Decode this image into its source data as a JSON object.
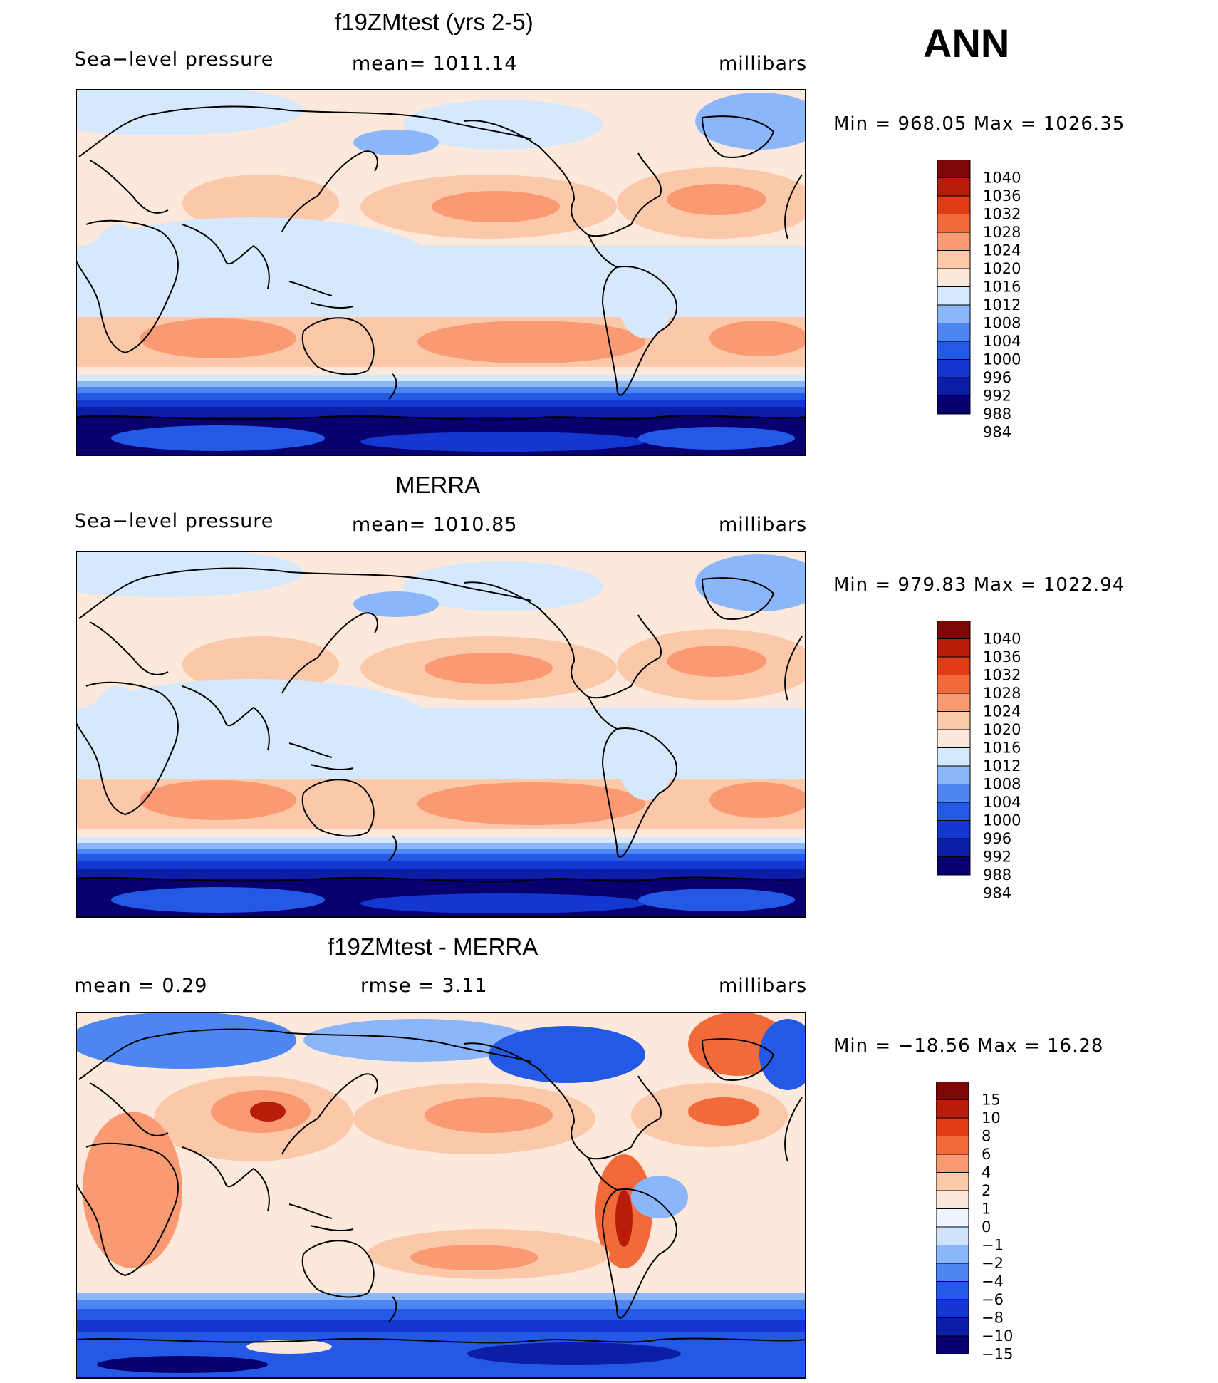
{
  "season": "ANN",
  "units": "millibars",
  "panels": [
    {
      "title": "f19ZMtest (yrs 2-5)",
      "variable": "Sea−level pressure",
      "stat1": "mean=  1011.14",
      "stat2": "",
      "units": "millibars",
      "minmax": "Min  =  968.05  Max  =  1026.35",
      "colors": [
        "#08006e",
        "#0c1da6",
        "#1437d0",
        "#2459e6",
        "#4d86f0",
        "#8cb6fa",
        "#d6e8fc",
        "#fde9dc",
        "#fcc8aa",
        "#fa9a72",
        "#f26a3a",
        "#e03c16",
        "#b81c0a",
        "#7d0606"
      ]
    },
    {
      "title": "MERRA",
      "variable": "Sea−level pressure",
      "stat1": "mean=  1010.85",
      "stat2": "",
      "units": "millibars",
      "minmax": "Min  =  979.83  Max  =  1022.94",
      "colors": [
        "#08006e",
        "#0c1da6",
        "#1437d0",
        "#2459e6",
        "#4d86f0",
        "#8cb6fa",
        "#d6e8fc",
        "#fde9dc",
        "#fcc8aa",
        "#fa9a72",
        "#f26a3a",
        "#e03c16",
        "#b81c0a",
        "#7d0606"
      ]
    },
    {
      "title": "f19ZMtest - MERRA",
      "variable": "mean =     0.29",
      "stat1": "rmse =     3.11",
      "stat2": "",
      "units": "millibars",
      "minmax": "Min  =  −18.56  Max  =    16.28",
      "colors": [
        "#08006e",
        "#0c1da6",
        "#1437d0",
        "#2459e6",
        "#4d86f0",
        "#8cb6fa",
        "#cfe3fb",
        "#edf4fd",
        "#fde9dc",
        "#fcc8aa",
        "#fa9a72",
        "#f26a3a",
        "#e03c16",
        "#b81c0a",
        "#7d0606"
      ]
    }
  ],
  "chart_data": [
    {
      "type": "heatmap",
      "title": "f19ZMtest (yrs 2-5)",
      "variable": "Sea-level pressure",
      "units": "millibars",
      "mean": 1011.14,
      "min": 968.05,
      "max": 1026.35,
      "levels": [
        984,
        988,
        992,
        996,
        1000,
        1004,
        1008,
        1012,
        1016,
        1020,
        1024,
        1028,
        1032,
        1036,
        1040
      ],
      "colorbar_labels": [
        "1040",
        "1036",
        "1032",
        "1028",
        "1024",
        "1020",
        "1016",
        "1012",
        "1008",
        "1004",
        "1000",
        "996",
        "992",
        "988",
        "984"
      ]
    },
    {
      "type": "heatmap",
      "title": "MERRA",
      "variable": "Sea-level pressure",
      "units": "millibars",
      "mean": 1010.85,
      "min": 979.83,
      "max": 1022.94,
      "levels": [
        984,
        988,
        992,
        996,
        1000,
        1004,
        1008,
        1012,
        1016,
        1020,
        1024,
        1028,
        1032,
        1036,
        1040
      ],
      "colorbar_labels": [
        "1040",
        "1036",
        "1032",
        "1028",
        "1024",
        "1020",
        "1016",
        "1012",
        "1008",
        "1004",
        "1000",
        "996",
        "992",
        "988",
        "984"
      ]
    },
    {
      "type": "heatmap",
      "title": "f19ZMtest - MERRA",
      "units": "millibars",
      "mean": 0.29,
      "rmse": 3.11,
      "min": -18.56,
      "max": 16.28,
      "levels": [
        -15,
        -10,
        -8,
        -6,
        -4,
        -2,
        -1,
        0,
        1,
        2,
        4,
        6,
        8,
        10,
        15
      ],
      "colorbar_labels": [
        "15",
        "10",
        "8",
        "6",
        "4",
        "2",
        "1",
        "0",
        "−1",
        "−2",
        "−4",
        "−6",
        "−8",
        "−10",
        "−15"
      ]
    }
  ]
}
